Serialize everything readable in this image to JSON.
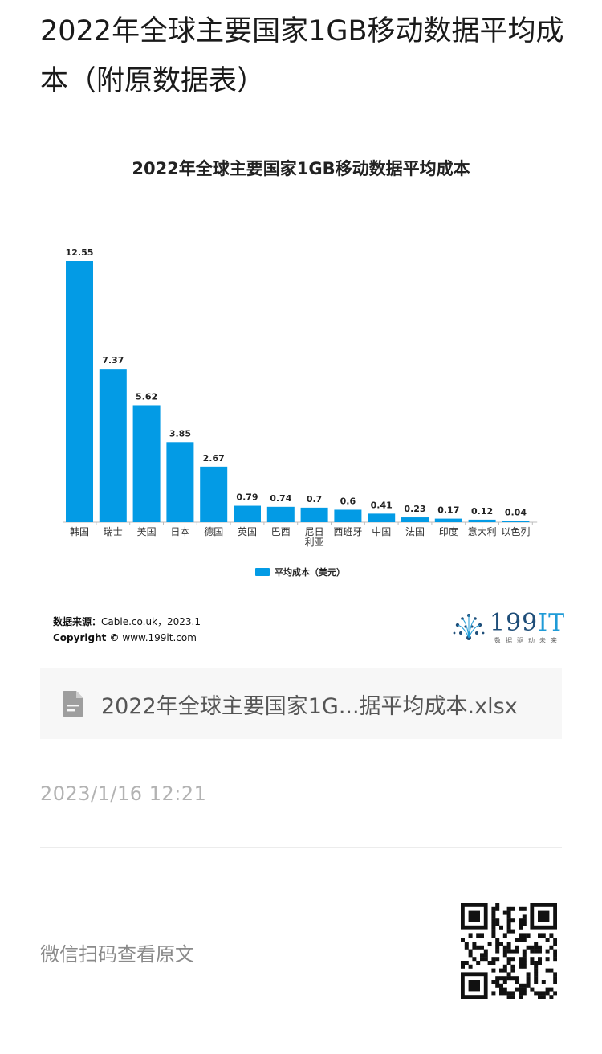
{
  "article": {
    "title": "2022年全球主要国家1GB移动数据平均成本（附原数据表）"
  },
  "chart": {
    "source_label": "数据来源：",
    "source_value": "Cable.co.uk，2023.1",
    "copyright_label": "Copyright ©",
    "copyright_value": "www.199it.com",
    "logo_text_num": "199",
    "logo_text_it": "IT",
    "logo_sub": "数据驱动未来"
  },
  "chart_data": {
    "type": "bar",
    "title": "2022年全球主要国家1GB移动数据平均成本",
    "categories": [
      "韩国",
      "瑞士",
      "美国",
      "日本",
      "德国",
      "英国",
      "巴西",
      "尼日利亚",
      "西班牙",
      "中国",
      "法国",
      "印度",
      "意大利",
      "以色列"
    ],
    "series": [
      {
        "name": "平均成本（美元）",
        "values": [
          12.55,
          7.37,
          5.62,
          3.85,
          2.67,
          0.79,
          0.74,
          0.7,
          0.6,
          0.41,
          0.23,
          0.17,
          0.12,
          0.04
        ],
        "labels": [
          "12.55",
          "7.37",
          "5.62",
          "3.85",
          "2.67",
          "0.79",
          "0.74",
          "0.7",
          "0.6",
          "0.41",
          "0.23",
          "0.17",
          "0.12",
          "0.04"
        ],
        "color": "#039be5"
      }
    ],
    "xlabel": "",
    "ylabel": "",
    "ylim": [
      0,
      12.55
    ],
    "grid": false,
    "legend": "bottom-center",
    "data_labels": true
  },
  "attachment": {
    "filename": "2022年全球主要国家1G...据平均成本.xlsx",
    "icon": "document-icon"
  },
  "meta": {
    "timestamp": "2023/1/16 12:21",
    "qr_hint": "微信扫码查看原文"
  },
  "colors": {
    "bar": "#039be5",
    "brand_dark": "#1f4e79",
    "brand_light": "#1f9bd7"
  }
}
